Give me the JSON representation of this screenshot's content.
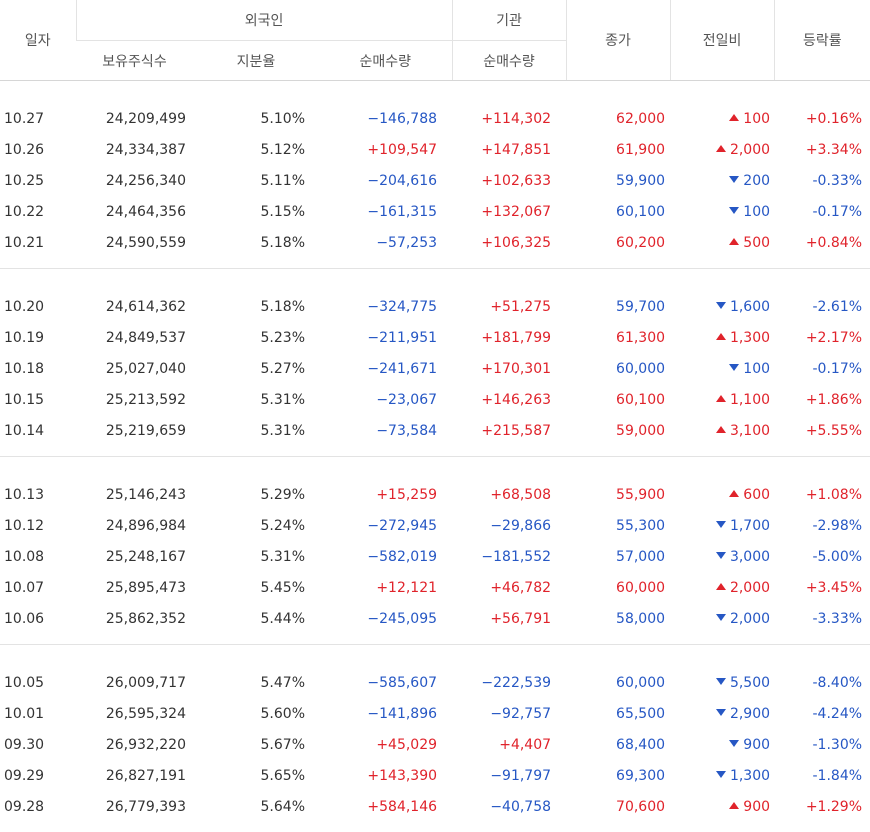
{
  "header": {
    "date": "일자",
    "foreign": "외국인",
    "institution": "기관",
    "holdings": "보유주식수",
    "ratio": "지분율",
    "foreign_net": "순매수량",
    "inst_net": "순매수량",
    "close": "종가",
    "change": "전일비",
    "rate": "등락률"
  },
  "colors": {
    "up": "#e0232b",
    "down": "#2657c4"
  },
  "icons": {
    "up": "triangle-up-icon",
    "down": "triangle-down-icon"
  },
  "groups": [
    [
      {
        "date": "10.27",
        "holdings": "24,209,499",
        "ratio": "5.10%",
        "foreign_net": "−146,788",
        "inst_net": "+114,302",
        "close": "62,000",
        "dir": "up",
        "change": "100",
        "rate": "+0.16%"
      },
      {
        "date": "10.26",
        "holdings": "24,334,387",
        "ratio": "5.12%",
        "foreign_net": "+109,547",
        "inst_net": "+147,851",
        "close": "61,900",
        "dir": "up",
        "change": "2,000",
        "rate": "+3.34%"
      },
      {
        "date": "10.25",
        "holdings": "24,256,340",
        "ratio": "5.11%",
        "foreign_net": "−204,616",
        "inst_net": "+102,633",
        "close": "59,900",
        "dir": "down",
        "change": "200",
        "rate": "-0.33%"
      },
      {
        "date": "10.22",
        "holdings": "24,464,356",
        "ratio": "5.15%",
        "foreign_net": "−161,315",
        "inst_net": "+132,067",
        "close": "60,100",
        "dir": "down",
        "change": "100",
        "rate": "-0.17%"
      },
      {
        "date": "10.21",
        "holdings": "24,590,559",
        "ratio": "5.18%",
        "foreign_net": "−57,253",
        "inst_net": "+106,325",
        "close": "60,200",
        "dir": "up",
        "change": "500",
        "rate": "+0.84%"
      }
    ],
    [
      {
        "date": "10.20",
        "holdings": "24,614,362",
        "ratio": "5.18%",
        "foreign_net": "−324,775",
        "inst_net": "+51,275",
        "close": "59,700",
        "dir": "down",
        "change": "1,600",
        "rate": "-2.61%"
      },
      {
        "date": "10.19",
        "holdings": "24,849,537",
        "ratio": "5.23%",
        "foreign_net": "−211,951",
        "inst_net": "+181,799",
        "close": "61,300",
        "dir": "up",
        "change": "1,300",
        "rate": "+2.17%"
      },
      {
        "date": "10.18",
        "holdings": "25,027,040",
        "ratio": "5.27%",
        "foreign_net": "−241,671",
        "inst_net": "+170,301",
        "close": "60,000",
        "dir": "down",
        "change": "100",
        "rate": "-0.17%"
      },
      {
        "date": "10.15",
        "holdings": "25,213,592",
        "ratio": "5.31%",
        "foreign_net": "−23,067",
        "inst_net": "+146,263",
        "close": "60,100",
        "dir": "up",
        "change": "1,100",
        "rate": "+1.86%"
      },
      {
        "date": "10.14",
        "holdings": "25,219,659",
        "ratio": "5.31%",
        "foreign_net": "−73,584",
        "inst_net": "+215,587",
        "close": "59,000",
        "dir": "up",
        "change": "3,100",
        "rate": "+5.55%"
      }
    ],
    [
      {
        "date": "10.13",
        "holdings": "25,146,243",
        "ratio": "5.29%",
        "foreign_net": "+15,259",
        "inst_net": "+68,508",
        "close": "55,900",
        "dir": "up",
        "change": "600",
        "rate": "+1.08%"
      },
      {
        "date": "10.12",
        "holdings": "24,896,984",
        "ratio": "5.24%",
        "foreign_net": "−272,945",
        "inst_net": "−29,866",
        "close": "55,300",
        "dir": "down",
        "change": "1,700",
        "rate": "-2.98%"
      },
      {
        "date": "10.08",
        "holdings": "25,248,167",
        "ratio": "5.31%",
        "foreign_net": "−582,019",
        "inst_net": "−181,552",
        "close": "57,000",
        "dir": "down",
        "change": "3,000",
        "rate": "-5.00%"
      },
      {
        "date": "10.07",
        "holdings": "25,895,473",
        "ratio": "5.45%",
        "foreign_net": "+12,121",
        "inst_net": "+46,782",
        "close": "60,000",
        "dir": "up",
        "change": "2,000",
        "rate": "+3.45%"
      },
      {
        "date": "10.06",
        "holdings": "25,862,352",
        "ratio": "5.44%",
        "foreign_net": "−245,095",
        "inst_net": "+56,791",
        "close": "58,000",
        "dir": "down",
        "change": "2,000",
        "rate": "-3.33%"
      }
    ],
    [
      {
        "date": "10.05",
        "holdings": "26,009,717",
        "ratio": "5.47%",
        "foreign_net": "−585,607",
        "inst_net": "−222,539",
        "close": "60,000",
        "dir": "down",
        "change": "5,500",
        "rate": "-8.40%"
      },
      {
        "date": "10.01",
        "holdings": "26,595,324",
        "ratio": "5.60%",
        "foreign_net": "−141,896",
        "inst_net": "−92,757",
        "close": "65,500",
        "dir": "down",
        "change": "2,900",
        "rate": "-4.24%"
      },
      {
        "date": "09.30",
        "holdings": "26,932,220",
        "ratio": "5.67%",
        "foreign_net": "+45,029",
        "inst_net": "+4,407",
        "close": "68,400",
        "dir": "down",
        "change": "900",
        "rate": "-1.30%"
      },
      {
        "date": "09.29",
        "holdings": "26,827,191",
        "ratio": "5.65%",
        "foreign_net": "+143,390",
        "inst_net": "−91,797",
        "close": "69,300",
        "dir": "down",
        "change": "1,300",
        "rate": "-1.84%"
      },
      {
        "date": "09.28",
        "holdings": "26,779,393",
        "ratio": "5.64%",
        "foreign_net": "+584,146",
        "inst_net": "−40,758",
        "close": "70,600",
        "dir": "up",
        "change": "900",
        "rate": "+1.29%"
      }
    ]
  ]
}
